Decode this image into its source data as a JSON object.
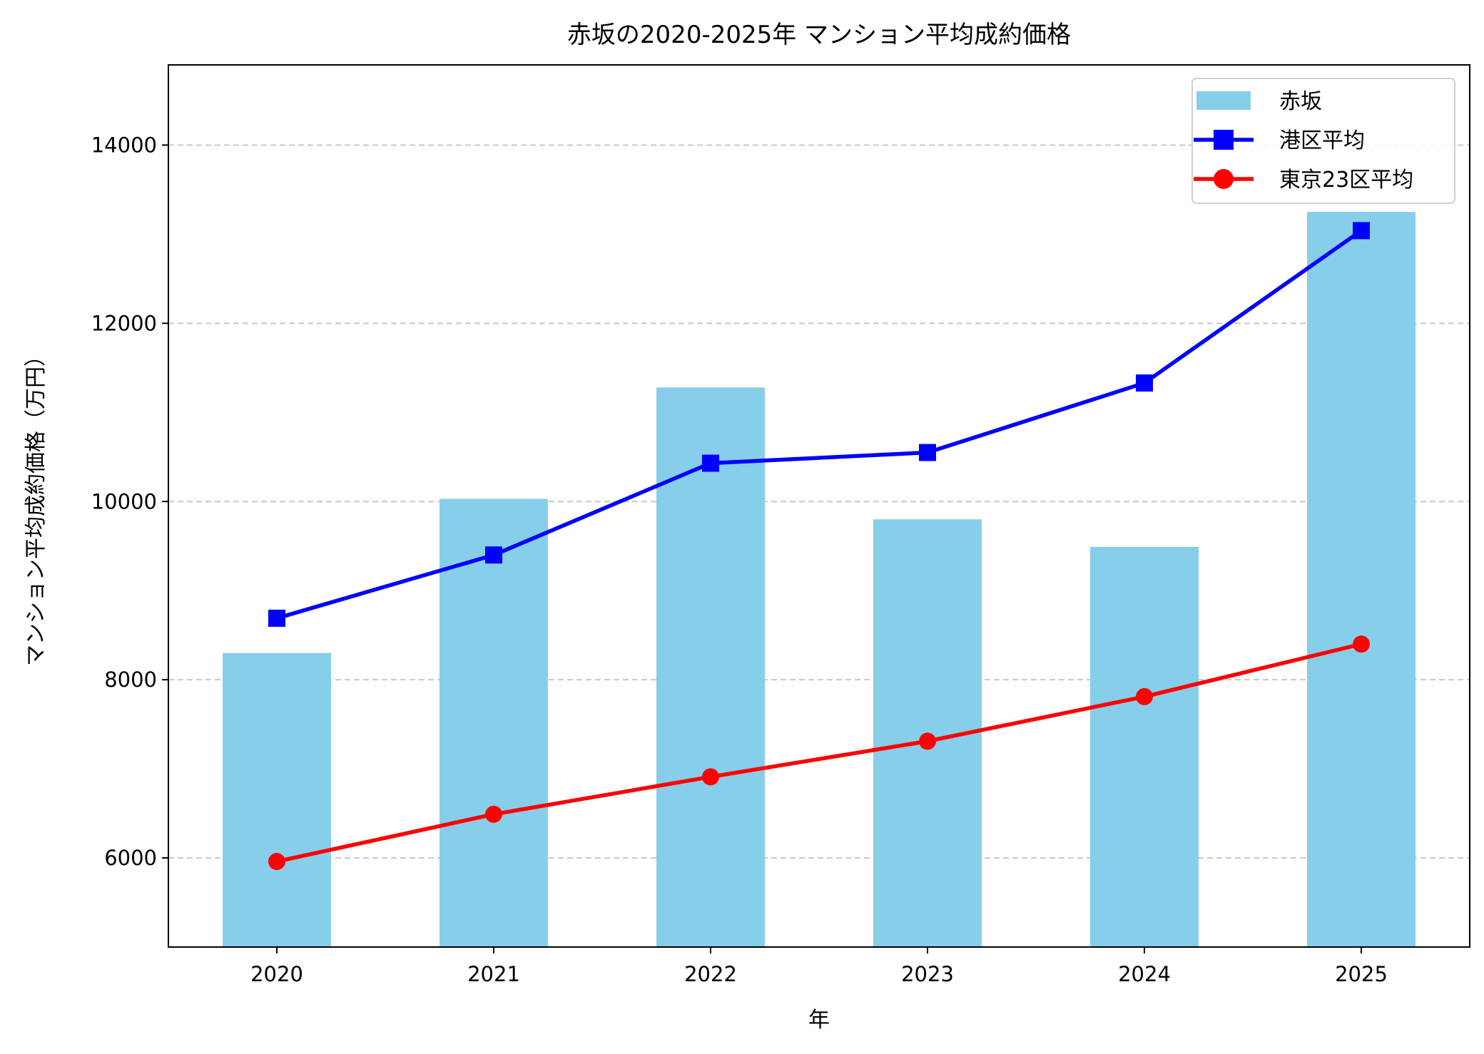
{
  "chart_data": {
    "type": "bar",
    "title": "赤坂の2020-2025年 マンション平均成約価格",
    "xlabel": "年",
    "ylabel": "マンション平均成約価格（万円）",
    "categories": [
      "2020",
      "2021",
      "2022",
      "2023",
      "2024",
      "2025"
    ],
    "ylim": [
      5000,
      14900
    ],
    "yticks": [
      6000,
      8000,
      10000,
      12000,
      14000
    ],
    "grid": {
      "axis": "y",
      "style": "dashed",
      "on": true
    },
    "legend_position": "top-right",
    "series": [
      {
        "name": "赤坂",
        "type": "bar",
        "color": "#87CEEB",
        "values": [
          8300,
          10030,
          11280,
          9800,
          9490,
          13250
        ]
      },
      {
        "name": "港区平均",
        "type": "line",
        "marker": "square",
        "color": "#0000FF",
        "values": [
          8690,
          9400,
          10430,
          10550,
          11330,
          13040
        ]
      },
      {
        "name": "東京23区平均",
        "type": "line",
        "marker": "circle",
        "color": "#FF0000",
        "values": [
          5960,
          6490,
          6910,
          7310,
          7810,
          8400
        ]
      }
    ]
  }
}
